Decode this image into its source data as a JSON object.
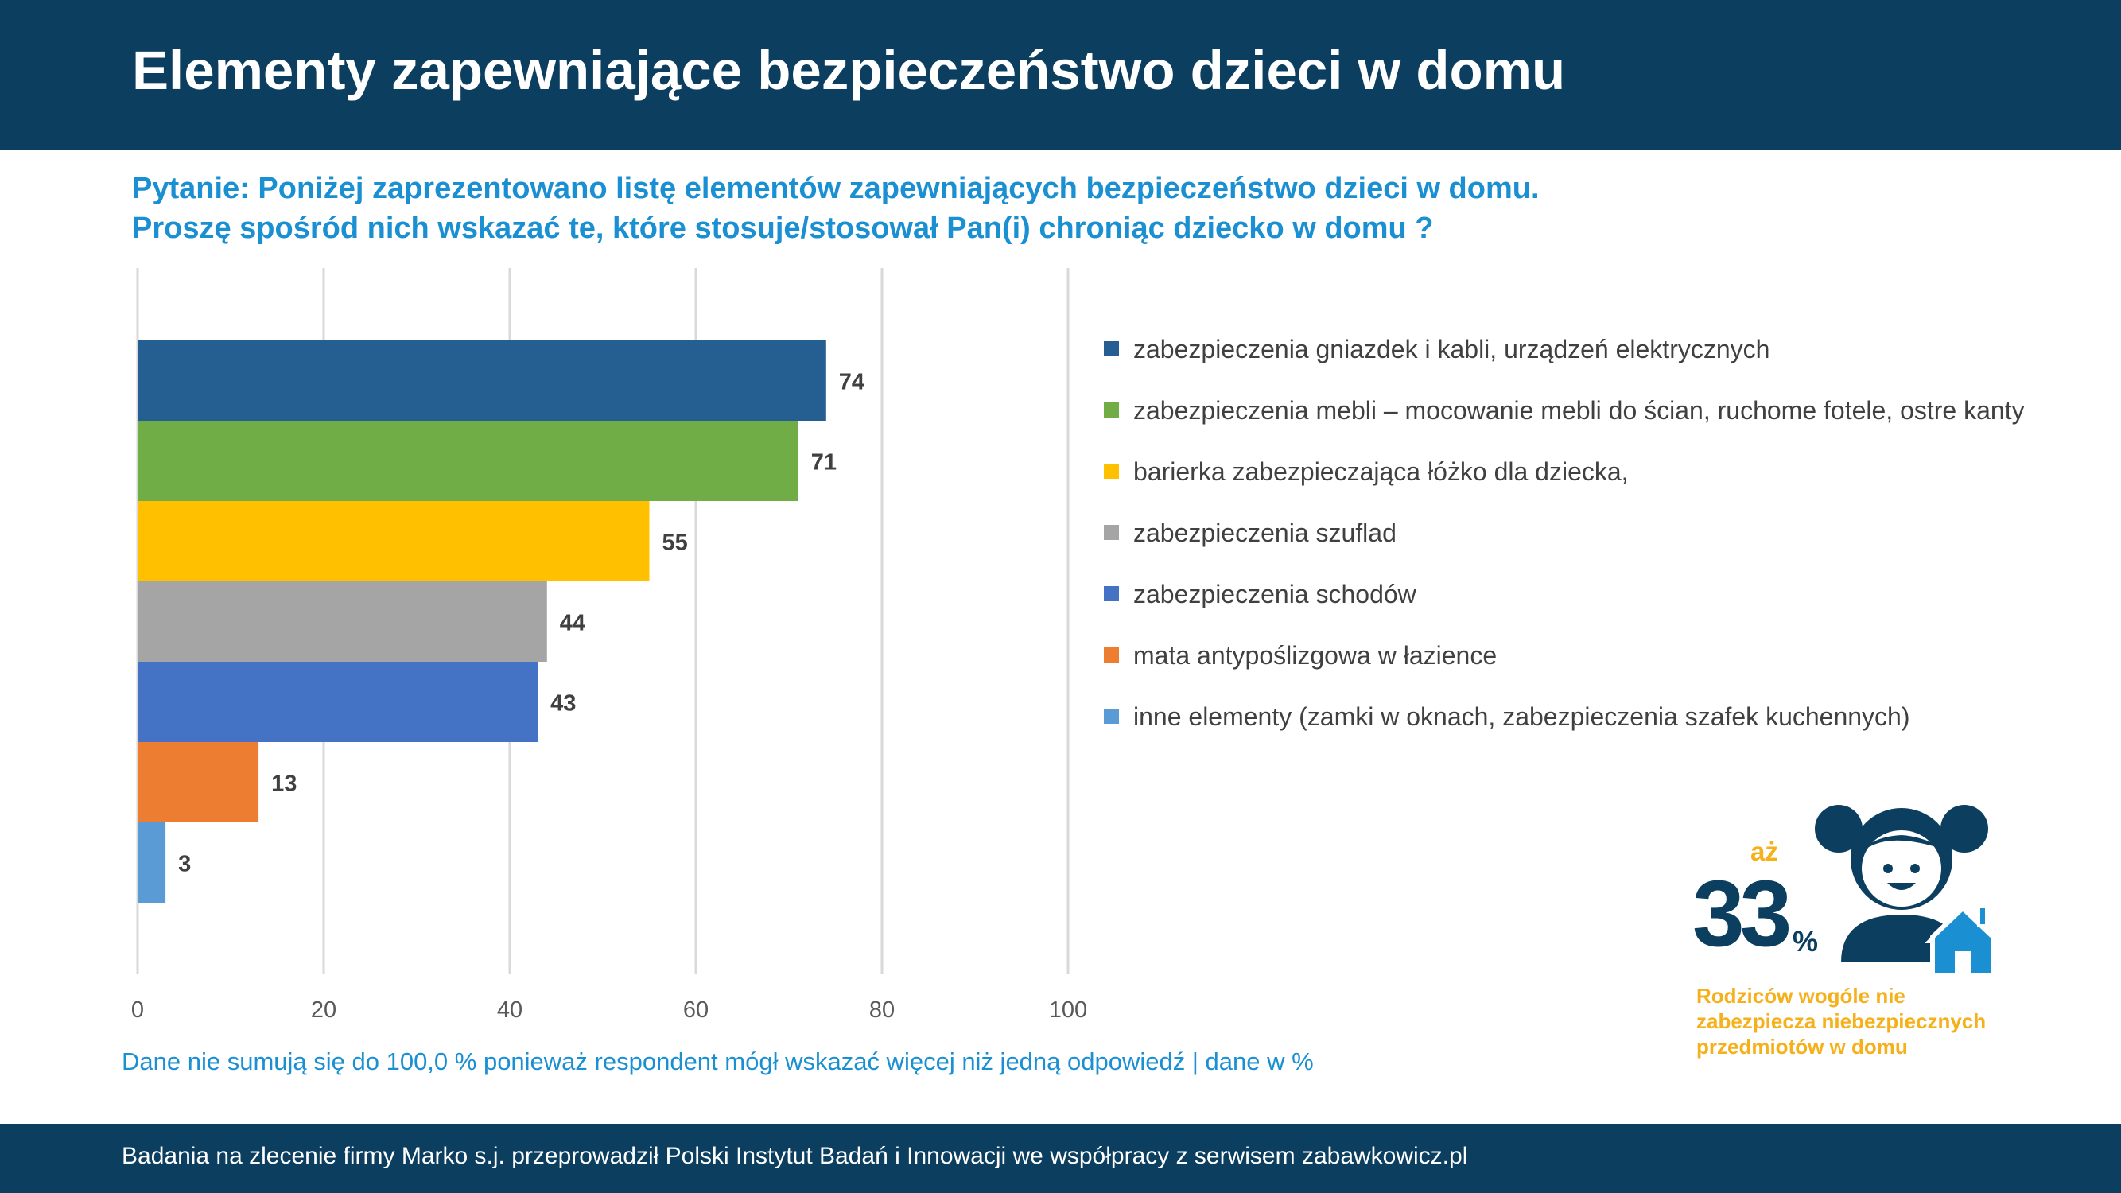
{
  "header": {
    "title": "Elementy zapewniające bezpieczeństwo dzieci w domu"
  },
  "question": {
    "line1": "Pytanie: Poniżej zaprezentowano listę elementów zapewniających bezpieczeństwo dzieci w domu.",
    "line2": "Proszę spośród nich wskazać te, które stosuje/stosował Pan(i) chroniąc dziecko w domu ?"
  },
  "chart_data": {
    "type": "bar",
    "orientation": "horizontal",
    "title": "",
    "xlabel": "",
    "ylabel": "",
    "xlim": [
      0,
      100
    ],
    "x_ticks": [
      "0",
      "20",
      "40",
      "60",
      "80",
      "100"
    ],
    "grid": true,
    "legend_position": "right",
    "categories": [
      "zabezpieczenia gniazdek i kabli, urządzeń elektrycznych",
      "zabezpieczenia mebli – mocowanie mebli do ścian, ruchome fotele, ostre kanty",
      "barierka zabezpieczająca łóżko dla dziecka,",
      "zabezpieczenia szuflad",
      "zabezpieczenia schodów",
      "mata antypoślizgowa w łazience",
      "inne elementy (zamki w oknach, zabezpieczenia szafek kuchennych)"
    ],
    "values": [
      74,
      71,
      55,
      44,
      43,
      13,
      3
    ],
    "data_labels": [
      "74",
      "71",
      "55",
      "44",
      "43",
      "13",
      "3"
    ],
    "colors": [
      "#255e91",
      "#70ad47",
      "#ffc000",
      "#a5a5a5",
      "#4472c4",
      "#ed7d31",
      "#5b9bd5"
    ]
  },
  "note": "Dane nie sumują się do 100,0 % ponieważ respondent mógł wskazać więcej niż jedną odpowiedź  |  dane w %",
  "stat": {
    "prefix": "aż",
    "number": "33",
    "unit": "%",
    "caption": "Rodziców wogóle nie zabezpiecza niebezpiecznych przedmiotów w domu",
    "icon": "child-house-icon",
    "color_primary": "#0b3e5f",
    "color_accent": "#f5b01a",
    "color_house": "#1a8fd2"
  },
  "footer": {
    "text": "Badania na zlecenie firmy Marko s.j. przeprowadził Polski Instytut Badań i Innowacji we współpracy z serwisem zabawkowicz.pl"
  }
}
